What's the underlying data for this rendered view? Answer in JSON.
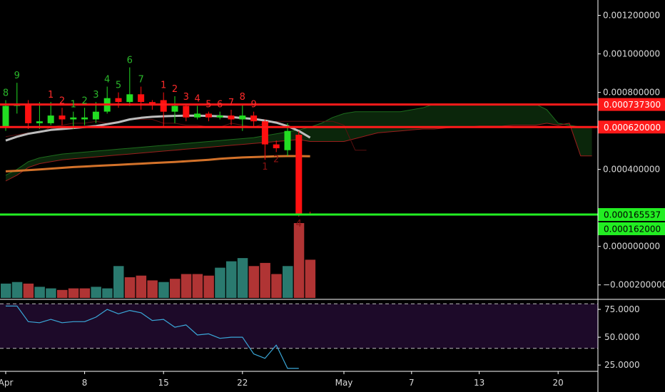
{
  "chart_data": {
    "type": "candlestick",
    "x_labels": [
      {
        "label": "Apr",
        "index": 0
      },
      {
        "label": "8",
        "index": 7
      },
      {
        "label": "15",
        "index": 14
      },
      {
        "label": "22",
        "index": 21
      },
      {
        "label": "May",
        "index": 30
      },
      {
        "label": "7",
        "index": 36
      },
      {
        "label": "13",
        "index": 42
      },
      {
        "label": "20",
        "index": 49
      }
    ],
    "price_ticks": [
      "0.001200000",
      "0.001000000",
      "0.000800000",
      "0.000400000",
      "0.000000000",
      "−0.000200000"
    ],
    "price_tick_values": [
      0.0012,
      0.001,
      0.0008,
      0.0004,
      0.0,
      -0.0002
    ],
    "y_range": [
      -0.000275,
      0.00128
    ],
    "candles": [
      {
        "o": 0.00062,
        "h": 0.00076,
        "l": 0.0006,
        "c": 0.00073
      },
      {
        "o": 0.00073,
        "h": 0.00085,
        "l": 0.00069,
        "c": 0.00074
      },
      {
        "o": 0.00074,
        "h": 0.00076,
        "l": 0.00061,
        "c": 0.00064
      },
      {
        "o": 0.00064,
        "h": 0.00075,
        "l": 0.00061,
        "c": 0.00065
      },
      {
        "o": 0.00064,
        "h": 0.00075,
        "l": 0.00063,
        "c": 0.00068
      },
      {
        "o": 0.00068,
        "h": 0.00072,
        "l": 0.00063,
        "c": 0.00066
      },
      {
        "o": 0.00066,
        "h": 0.0007,
        "l": 0.00061,
        "c": 0.00067
      },
      {
        "o": 0.00066,
        "h": 0.00072,
        "l": 0.00063,
        "c": 0.00067
      },
      {
        "o": 0.00066,
        "h": 0.00075,
        "l": 0.00064,
        "c": 0.0007
      },
      {
        "o": 0.0007,
        "h": 0.00083,
        "l": 0.00069,
        "c": 0.00077
      },
      {
        "o": 0.00077,
        "h": 0.0008,
        "l": 0.00072,
        "c": 0.00075
      },
      {
        "o": 0.00075,
        "h": 0.00093,
        "l": 0.00073,
        "c": 0.00079
      },
      {
        "o": 0.00079,
        "h": 0.00083,
        "l": 0.00071,
        "c": 0.00075
      },
      {
        "o": 0.00075,
        "h": 0.00076,
        "l": 0.00071,
        "c": 0.00074
      },
      {
        "o": 0.00076,
        "h": 0.0008,
        "l": 0.00062,
        "c": 0.0007
      },
      {
        "o": 0.0007,
        "h": 0.00078,
        "l": 0.00064,
        "c": 0.00073
      },
      {
        "o": 0.00073,
        "h": 0.00074,
        "l": 0.00065,
        "c": 0.00067
      },
      {
        "o": 0.00067,
        "h": 0.00073,
        "l": 0.00066,
        "c": 0.00069
      },
      {
        "o": 0.00069,
        "h": 0.0007,
        "l": 0.00065,
        "c": 0.00067
      },
      {
        "o": 0.00067,
        "h": 0.0007,
        "l": 0.00066,
        "c": 0.00068
      },
      {
        "o": 0.00068,
        "h": 0.00071,
        "l": 0.00063,
        "c": 0.00066
      },
      {
        "o": 0.00066,
        "h": 0.00074,
        "l": 0.0006,
        "c": 0.00068
      },
      {
        "o": 0.00068,
        "h": 0.0007,
        "l": 0.00062,
        "c": 0.00065
      },
      {
        "o": 0.00065,
        "h": 0.00066,
        "l": 0.00045,
        "c": 0.00053
      },
      {
        "o": 0.00053,
        "h": 0.00055,
        "l": 0.00049,
        "c": 0.00051
      },
      {
        "o": 0.0005,
        "h": 0.00064,
        "l": 0.00047,
        "c": 0.0006
      },
      {
        "o": 0.00058,
        "h": 0.0006,
        "l": 0.000155,
        "c": 0.00017
      },
      {
        "o": 0.00017,
        "h": 0.00018,
        "l": 0.00016,
        "c": 0.000168
      }
    ],
    "sma": [
      0.00055,
      0.00057,
      0.000585,
      0.000595,
      0.000605,
      0.00061,
      0.000615,
      0.00062,
      0.000625,
      0.000635,
      0.000645,
      0.00066,
      0.000668,
      0.000673,
      0.000676,
      0.000678,
      0.000679,
      0.000679,
      0.000678,
      0.000676,
      0.000672,
      0.000667,
      0.000662,
      0.000654,
      0.000643,
      0.000625,
      0.0006,
      0.000565
    ],
    "slow_ma": [
      0.00039,
      0.000393,
      0.000396,
      0.0004,
      0.000404,
      0.000408,
      0.000412,
      0.000415,
      0.000418,
      0.000421,
      0.000424,
      0.000427,
      0.00043,
      0.000433,
      0.000436,
      0.000439,
      0.000442,
      0.000446,
      0.00045,
      0.000455,
      0.000459,
      0.000462,
      0.000464,
      0.000466,
      0.000468,
      0.000469,
      0.000469,
      0.000468
    ],
    "cloud_top": [
      0.00037,
      0.0004,
      0.00044,
      0.00046,
      0.00047,
      0.00048,
      0.000485,
      0.00049,
      0.000495,
      0.0005,
      0.000505,
      0.00051,
      0.000515,
      0.00052,
      0.000525,
      0.00053,
      0.000535,
      0.00054,
      0.000545,
      0.00055,
      0.000555,
      0.00056,
      0.000565,
      0.000575,
      0.000585,
      0.000595,
      0.000605,
      0.00062,
      0.00064,
      0.00067,
      0.00069,
      0.0007,
      0.0007,
      0.0007,
      0.0007,
      0.0007,
      0.00071,
      0.00072,
      0.00074,
      0.00074,
      0.00074,
      0.00074,
      0.00074,
      0.00074,
      0.00074,
      0.00074,
      0.00074,
      0.00074,
      0.00071,
      0.00064,
      0.00063,
      0.00062,
      0.00062
    ],
    "cloud_bottom": [
      0.00034,
      0.00037,
      0.00041,
      0.00043,
      0.00044,
      0.00045,
      0.000455,
      0.00046,
      0.000465,
      0.00047,
      0.000475,
      0.00048,
      0.000485,
      0.00049,
      0.000495,
      0.0005,
      0.000505,
      0.00051,
      0.000515,
      0.00052,
      0.000525,
      0.00053,
      0.000535,
      0.00054,
      0.000545,
      0.00055,
      0.000555,
      0.000545,
      0.000545,
      0.000545,
      0.000545,
      0.00056,
      0.000575,
      0.00059,
      0.000595,
      0.0006,
      0.000605,
      0.00061,
      0.00061,
      0.000615,
      0.00062,
      0.00062,
      0.000625,
      0.000625,
      0.000625,
      0.00063,
      0.00063,
      0.00063,
      0.00064,
      0.00063,
      0.00064,
      0.00047,
      0.00047
    ],
    "lagging_span": [
      0.00057,
      0.00058,
      0.00059,
      0.00059,
      0.00062,
      0.00063,
      0.00064,
      0.00064,
      0.00065,
      0.00064,
      0.00065,
      0.00066,
      0.00066,
      0.00066,
      0.00064,
      0.00064,
      0.00063,
      0.00063,
      0.00062,
      0.00062,
      0.00064,
      0.00063,
      0.00062,
      0.00064,
      0.00065,
      0.00065,
      0.00065,
      0.00065,
      0.00065,
      0.00065,
      0.00063,
      0.0005,
      0.0005
    ],
    "horizontal_levels": [
      {
        "value": 0.0007373,
        "label": "0.000737300",
        "color": "#ff1a1a"
      },
      {
        "value": 0.00062,
        "label": "0.000620000",
        "color": "#ff1a1a"
      },
      {
        "value": 0.000165537,
        "label": "0.000165537",
        "color": "#22ee22"
      }
    ],
    "level_tag": {
      "value": 0.000162,
      "label": "0.000162000",
      "color": "#22ee22"
    },
    "td_sequential": [
      {
        "i": 0,
        "n": "8",
        "pos": "above",
        "color": "green"
      },
      {
        "i": 1,
        "n": "9",
        "pos": "above",
        "color": "green"
      },
      {
        "i": 4,
        "n": "1",
        "pos": "above",
        "color": "red"
      },
      {
        "i": 5,
        "n": "2",
        "pos": "above",
        "color": "red"
      },
      {
        "i": 6,
        "n": "1",
        "pos": "above",
        "color": "green"
      },
      {
        "i": 7,
        "n": "2",
        "pos": "above",
        "color": "green"
      },
      {
        "i": 8,
        "n": "3",
        "pos": "above",
        "color": "green"
      },
      {
        "i": 9,
        "n": "4",
        "pos": "above",
        "color": "green"
      },
      {
        "i": 10,
        "n": "5",
        "pos": "above",
        "color": "green"
      },
      {
        "i": 11,
        "n": "6",
        "pos": "above",
        "color": "green"
      },
      {
        "i": 12,
        "n": "7",
        "pos": "above",
        "color": "green"
      },
      {
        "i": 14,
        "n": "1",
        "pos": "above",
        "color": "red"
      },
      {
        "i": 15,
        "n": "2",
        "pos": "above",
        "color": "red"
      },
      {
        "i": 16,
        "n": "3",
        "pos": "above",
        "color": "red"
      },
      {
        "i": 17,
        "n": "4",
        "pos": "above",
        "color": "red"
      },
      {
        "i": 18,
        "n": "5",
        "pos": "above",
        "color": "red"
      },
      {
        "i": 19,
        "n": "6",
        "pos": "above",
        "color": "red"
      },
      {
        "i": 20,
        "n": "7",
        "pos": "above",
        "color": "red"
      },
      {
        "i": 21,
        "n": "8",
        "pos": "above",
        "color": "red"
      },
      {
        "i": 22,
        "n": "9",
        "pos": "above",
        "color": "red"
      },
      {
        "i": 23,
        "n": "1",
        "pos": "below",
        "color": "darkred"
      },
      {
        "i": 24,
        "n": "2",
        "pos": "below",
        "color": "darkred"
      },
      {
        "i": 26,
        "n": "4",
        "pos": "below",
        "color": "darkred"
      }
    ],
    "volume": [
      9,
      10,
      9,
      7,
      6,
      5,
      6,
      6,
      7,
      6,
      20,
      13,
      14,
      11,
      10,
      12,
      15,
      15,
      14,
      19,
      23,
      25,
      20,
      22,
      15,
      20,
      47,
      24
    ],
    "volume_colors": [
      "green",
      "green",
      "red",
      "green",
      "green",
      "red",
      "red",
      "red",
      "green",
      "green",
      "green",
      "red",
      "red",
      "red",
      "green",
      "red",
      "red",
      "red",
      "red",
      "green",
      "green",
      "green",
      "red",
      "red",
      "red",
      "green",
      "red",
      "red"
    ],
    "rsi": [
      78,
      78,
      64,
      63,
      66,
      63,
      64,
      64,
      68,
      75,
      71,
      74,
      72,
      65,
      66,
      59,
      61,
      52,
      53,
      49,
      50,
      50,
      35,
      31,
      43,
      22,
      22
    ],
    "rsi_ticks": [
      "75.0000",
      "50.0000",
      "25.0000"
    ],
    "rsi_tick_values": [
      75,
      50,
      25
    ],
    "rsi_bands": [
      80,
      40
    ],
    "rsi_range": [
      20,
      84
    ]
  },
  "colors": {
    "up": "#22dd22",
    "down": "#ff1010",
    "sma": "#bdbdbd",
    "slow_ma": "#d3722a",
    "cloud_fill": "#0c2a0c",
    "cloud_line_up": "#1d6b1d",
    "cloud_line_down": "#9b1d1d",
    "lagging": "#5a1010",
    "vol_up": "#2a7a6f",
    "vol_down": "#b03434",
    "rsi_line": "#3aa7d8",
    "rsi_bg": "#1d0a29"
  }
}
